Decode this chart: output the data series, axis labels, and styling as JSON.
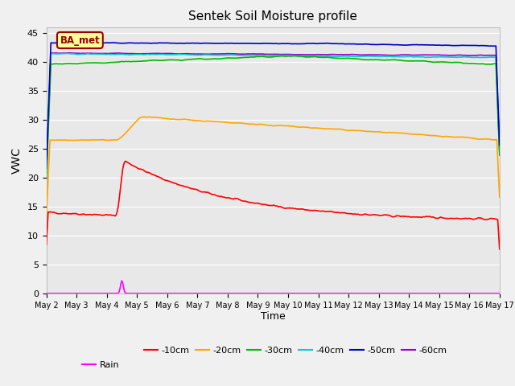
{
  "title": "Sentek Soil Moisture profile",
  "xlabel": "Time",
  "ylabel": "VWC",
  "legend_label": "BA_met",
  "ylim": [
    0,
    46
  ],
  "yticks": [
    0,
    5,
    10,
    15,
    20,
    25,
    30,
    35,
    40,
    45
  ],
  "fig_bg": "#f0f0f0",
  "plot_bg": "#e8e8e8",
  "lines": {
    "-10cm": {
      "color": "#ff0000",
      "lw": 1.2
    },
    "-20cm": {
      "color": "#ffa500",
      "lw": 1.2
    },
    "-30cm": {
      "color": "#00bb00",
      "lw": 1.2
    },
    "-40cm": {
      "color": "#00cccc",
      "lw": 1.2
    },
    "-50cm": {
      "color": "#0000cc",
      "lw": 1.2
    },
    "-60cm": {
      "color": "#9900cc",
      "lw": 1.2
    },
    "Rain": {
      "color": "#ff00ff",
      "lw": 1.2
    }
  },
  "x_tick_labels": [
    "May 2",
    "May 3",
    "May 4",
    "May 5",
    "May 6",
    "May 7",
    "May 8",
    "May 9",
    "May 10",
    "May 11",
    "May 12",
    "May 13",
    "May 14",
    "May 15",
    "May 16",
    "May 17"
  ],
  "n_points": 500
}
